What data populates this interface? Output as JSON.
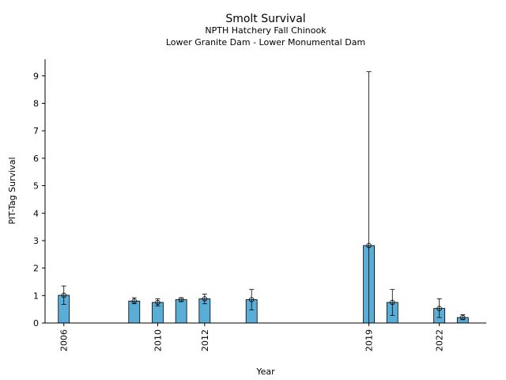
{
  "chart_data": {
    "type": "bar",
    "title": "Smolt Survival",
    "subtitle_lines": [
      "NPTH Hatchery Fall Chinook",
      "Lower Granite Dam - Lower Monumental Dam"
    ],
    "xlabel": "Year",
    "ylabel": "PIT-Tag Survival",
    "xlim": [
      2005.2,
      2024.0
    ],
    "ylim": [
      0,
      9.6
    ],
    "x_tick_labels": [
      "2006",
      "2010",
      "2012",
      "2019",
      "2022"
    ],
    "y_tick_labels": [
      "0",
      "1",
      "2",
      "3",
      "4",
      "5",
      "6",
      "7",
      "8",
      "9"
    ],
    "grid": false,
    "bar_color": "#5aadd6",
    "series": [
      {
        "x": [
          2006,
          2009,
          2010,
          2011,
          2012,
          2014,
          2019,
          2020,
          2022,
          2023
        ],
        "values": [
          1.01,
          0.8,
          0.75,
          0.85,
          0.88,
          0.85,
          2.82,
          0.75,
          0.53,
          0.2
        ],
        "error_low": [
          0.68,
          0.7,
          0.62,
          0.78,
          0.7,
          0.48,
          0.0,
          0.28,
          0.2,
          0.12
        ],
        "error_high": [
          1.35,
          0.92,
          0.88,
          0.92,
          1.05,
          1.22,
          9.15,
          1.22,
          0.88,
          0.3
        ]
      }
    ]
  }
}
